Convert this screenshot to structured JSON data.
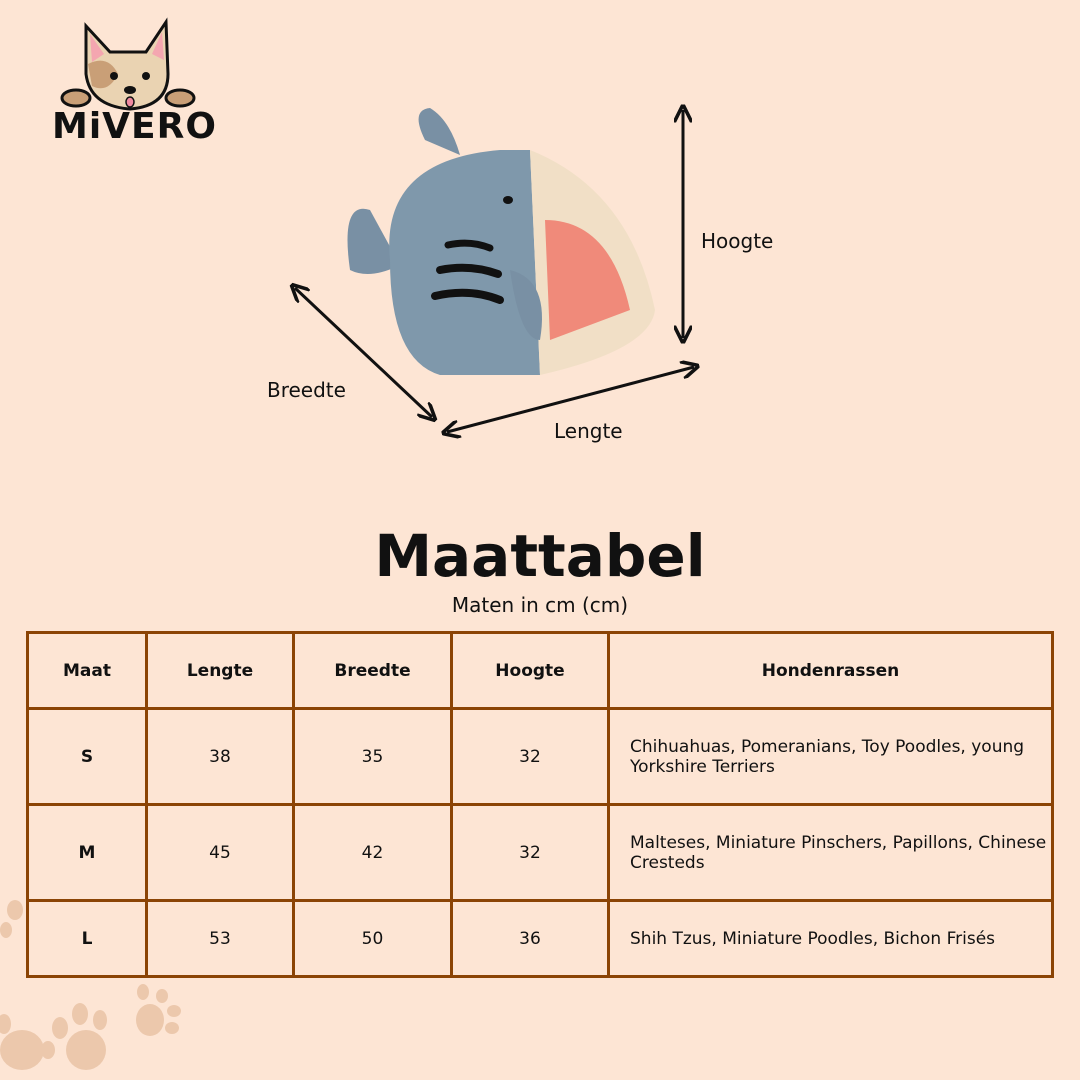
{
  "brand": {
    "name": "MiVERO"
  },
  "diagram": {
    "height_label": "Hoogte",
    "width_label": "Breedte",
    "length_label": "Lengte"
  },
  "heading": {
    "title": "Maattabel",
    "subtitle": "Maten in cm (cm)"
  },
  "table": {
    "headers": [
      "Maat",
      "Lengte",
      "Breedte",
      "Hoogte",
      "Hondenrassen"
    ],
    "rows": [
      {
        "size": "S",
        "length": "38",
        "width": "35",
        "height": "32",
        "breeds": "Chihuahuas, Pomeranians, Toy Poodles, young Yorkshire Terriers"
      },
      {
        "size": "M",
        "length": "45",
        "width": "42",
        "height": "32",
        "breeds": "Malteses, Miniature Pinschers, Papillons, Chinese Cresteds"
      },
      {
        "size": "L",
        "length": "53",
        "width": "50",
        "height": "36",
        "breeds": "Shih Tzus, Miniature Poodles, Bichon Frisés"
      }
    ]
  },
  "colors": {
    "background": "#fde5d4",
    "border": "#8b4405",
    "paw": "#ecc8ac"
  }
}
